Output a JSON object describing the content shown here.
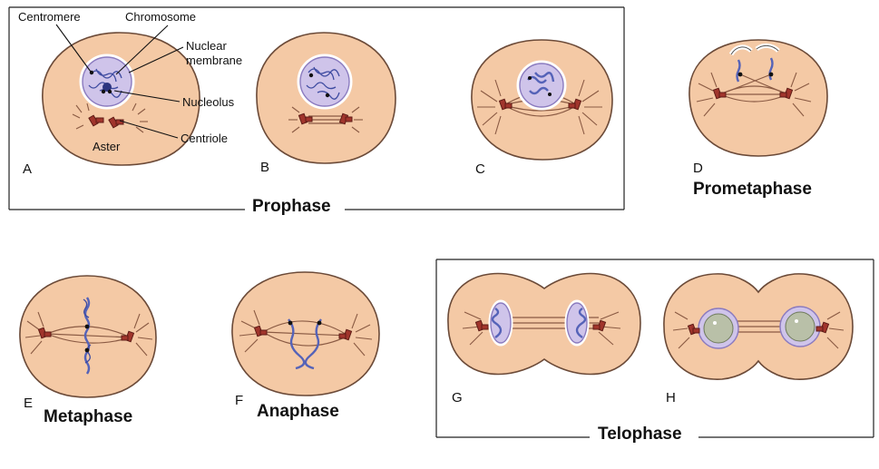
{
  "labels": {
    "centromere": "Centromere",
    "chromosome": "Chromosome",
    "nuclear_membrane_1": "Nuclear",
    "nuclear_membrane_2": "membrane",
    "nucleolus": "Nucleolus",
    "aster": "Aster",
    "centriole": "Centriole"
  },
  "letters": {
    "a": "A",
    "b": "B",
    "c": "C",
    "d": "D",
    "e": "E",
    "f": "F",
    "g": "G",
    "h": "H"
  },
  "phases": {
    "prophase": "Prophase",
    "prometaphase": "Prometaphase",
    "metaphase": "Metaphase",
    "anaphase": "Anaphase",
    "telophase": "Telophase"
  },
  "colors": {
    "cytoplasm": "#f4c9a5",
    "nucleus": "#cfc4ea",
    "chromosome": "#3d4aa0",
    "centriole": "#a1352c",
    "fiber": "#8a5a43"
  }
}
